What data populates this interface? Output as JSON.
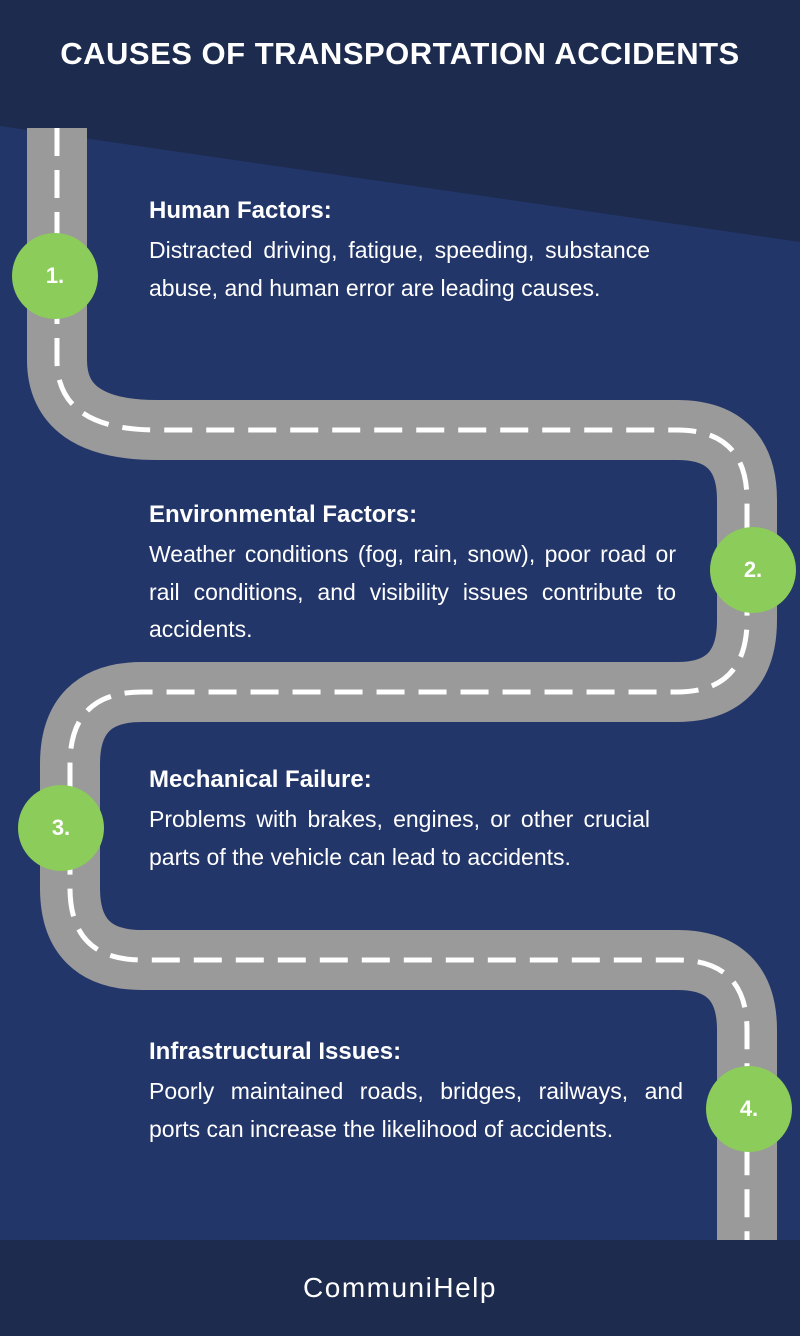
{
  "title": "CAUSES OF TRANSPORTATION ACCIDENTS",
  "colors": {
    "background": "#23366a",
    "header": "#1c2b4e",
    "road": "#9a9a9a",
    "accent": "#8bcc5a",
    "text": "#ffffff"
  },
  "items": [
    {
      "number": "1.",
      "heading": "Human Factors:",
      "text": "Distracted driving, fatigue, speeding, substance abuse, and human error are leading causes."
    },
    {
      "number": "2.",
      "heading": "Environmental Factors:",
      "text": "Weather conditions (fog, rain, snow), poor road or rail conditions, and visibility issues contribute to accidents."
    },
    {
      "number": "3.",
      "heading": "Mechanical Failure:",
      "text": "Problems with brakes, engines, or other crucial parts of the vehicle can lead to accidents."
    },
    {
      "number": "4.",
      "heading": "Infrastructural Issues:",
      "text": "Poorly maintained roads, bridges, railways, and ports can increase the likelihood of accidents."
    }
  ],
  "footer": "CommuniHelp"
}
